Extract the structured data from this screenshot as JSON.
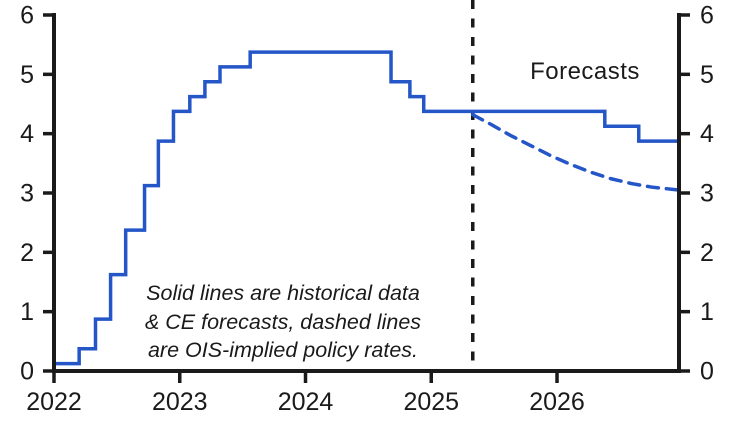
{
  "page": {
    "background_color": "#ffffff",
    "text_color": "#1a1a1a"
  },
  "chart_data": {
    "type": "line",
    "title": "",
    "xlabel": "",
    "ylabel": "",
    "xlim": [
      2022.0,
      2026.97
    ],
    "ylim": [
      0,
      6
    ],
    "grid": false,
    "axis_color": "#1a1a1a",
    "x_tick_values": [
      2022,
      2023,
      2024,
      2025,
      2026
    ],
    "x_tick_labels": [
      "2022",
      "2023",
      "2024",
      "2025",
      "2026"
    ],
    "y_tick_values": [
      0,
      1,
      2,
      3,
      4,
      5,
      6
    ],
    "y_tick_labels": [
      "0",
      "1",
      "2",
      "3",
      "4",
      "5",
      "6"
    ],
    "y_axis_sides": [
      "left",
      "right"
    ],
    "forecast_divider": {
      "x": 2025.33,
      "style": "dashed",
      "color": "#1a1a1a"
    },
    "series": [
      {
        "name": "Policy rate: historical data & CE forecast",
        "render": "step",
        "style": "solid",
        "color": "#2456c8",
        "points": [
          [
            2022.0,
            0.125
          ],
          [
            2022.2,
            0.375
          ],
          [
            2022.33,
            0.875
          ],
          [
            2022.45,
            1.625
          ],
          [
            2022.57,
            2.375
          ],
          [
            2022.72,
            3.125
          ],
          [
            2022.83,
            3.875
          ],
          [
            2022.95,
            4.375
          ],
          [
            2023.08,
            4.625
          ],
          [
            2023.2,
            4.875
          ],
          [
            2023.32,
            5.125
          ],
          [
            2023.56,
            5.375
          ],
          [
            2024.68,
            4.875
          ],
          [
            2024.83,
            4.625
          ],
          [
            2024.94,
            4.375
          ],
          [
            2026.38,
            4.125
          ],
          [
            2026.65,
            3.875
          ],
          [
            2026.97,
            3.875
          ]
        ]
      },
      {
        "name": "OIS-implied policy rate",
        "render": "line",
        "style": "dashed",
        "color": "#2456c8",
        "points": [
          [
            2025.33,
            4.32
          ],
          [
            2025.48,
            4.15
          ],
          [
            2025.63,
            3.97
          ],
          [
            2025.79,
            3.8
          ],
          [
            2025.95,
            3.63
          ],
          [
            2026.11,
            3.48
          ],
          [
            2026.27,
            3.35
          ],
          [
            2026.43,
            3.24
          ],
          [
            2026.59,
            3.16
          ],
          [
            2026.75,
            3.1
          ],
          [
            2026.97,
            3.05
          ]
        ]
      }
    ],
    "annotations": {
      "forecasts_label": "Forecasts",
      "note_line1": "Solid lines are historical data",
      "note_line2": "& CE forecasts, dashed lines",
      "note_line3": "are OIS-implied policy rates."
    }
  }
}
